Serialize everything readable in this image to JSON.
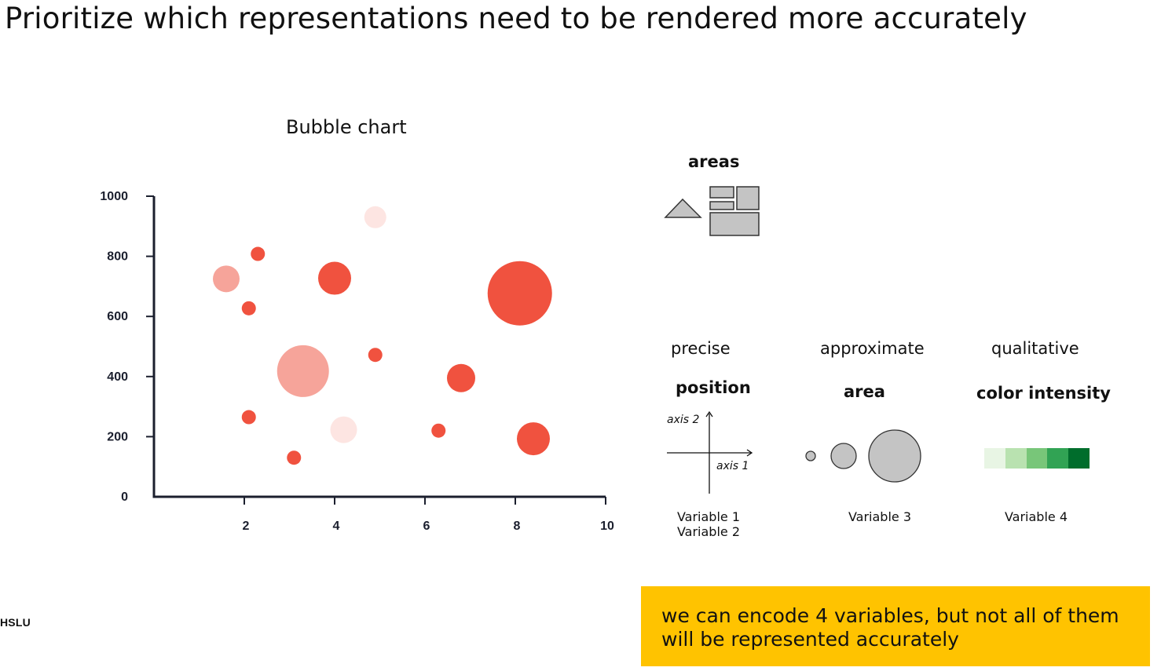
{
  "slide": {
    "title": "Prioritize which representations need to be rendered more accurately",
    "logo_text": "HSLU"
  },
  "chart_data": {
    "type": "scatter",
    "title": "Bubble chart",
    "xlabel": "",
    "ylabel": "",
    "xlim": [
      0,
      10
    ],
    "ylim": [
      0,
      1000
    ],
    "x_ticks": [
      2,
      4,
      6,
      8,
      10
    ],
    "y_ticks": [
      0,
      200,
      400,
      600,
      800,
      1000
    ],
    "grid": false,
    "points": [
      {
        "x": 1.6,
        "y": 725,
        "size": 17,
        "color": "#f6a49a"
      },
      {
        "x": 2.3,
        "y": 808,
        "size": 9,
        "color": "#f0523f"
      },
      {
        "x": 2.1,
        "y": 627,
        "size": 9,
        "color": "#f0523f"
      },
      {
        "x": 4.0,
        "y": 727,
        "size": 21,
        "color": "#f0523f"
      },
      {
        "x": 4.9,
        "y": 930,
        "size": 14,
        "color": "#fde5e2"
      },
      {
        "x": 8.1,
        "y": 677,
        "size": 41,
        "color": "#f0523f"
      },
      {
        "x": 3.3,
        "y": 418,
        "size": 33,
        "color": "#f6a49a"
      },
      {
        "x": 4.9,
        "y": 472,
        "size": 9,
        "color": "#f0523f"
      },
      {
        "x": 6.8,
        "y": 395,
        "size": 18,
        "color": "#f0523f"
      },
      {
        "x": 2.1,
        "y": 265,
        "size": 9,
        "color": "#f0523f"
      },
      {
        "x": 4.2,
        "y": 223,
        "size": 17,
        "color": "#fde5e2"
      },
      {
        "x": 6.3,
        "y": 220,
        "size": 9,
        "color": "#f0523f"
      },
      {
        "x": 8.4,
        "y": 193,
        "size": 21,
        "color": "#f0523f"
      },
      {
        "x": 3.1,
        "y": 130,
        "size": 9,
        "color": "#f0523f"
      }
    ]
  },
  "encodings": {
    "areas_label": "areas",
    "columns": [
      {
        "category": "precise",
        "encoding": "position",
        "variable_lines": [
          "Variable 1",
          "Variable 2"
        ]
      },
      {
        "category": "approximate",
        "encoding": "area",
        "variable_lines": [
          "Variable 3"
        ]
      },
      {
        "category": "qualitative",
        "encoding": "color intensity",
        "variable_lines": [
          "Variable 4"
        ]
      }
    ],
    "axis_labels": {
      "axis1": "axis 1",
      "axis2": "axis 2"
    },
    "color_scale": [
      "#e8f5e4",
      "#b9e2b0",
      "#78c679",
      "#31a354",
      "#006d2c"
    ],
    "shape_color": "#c4c4c4"
  },
  "callout": {
    "lines": [
      "we can encode 4 variables, but not all of them",
      "will be represented accurately"
    ],
    "background": "#ffc300"
  }
}
